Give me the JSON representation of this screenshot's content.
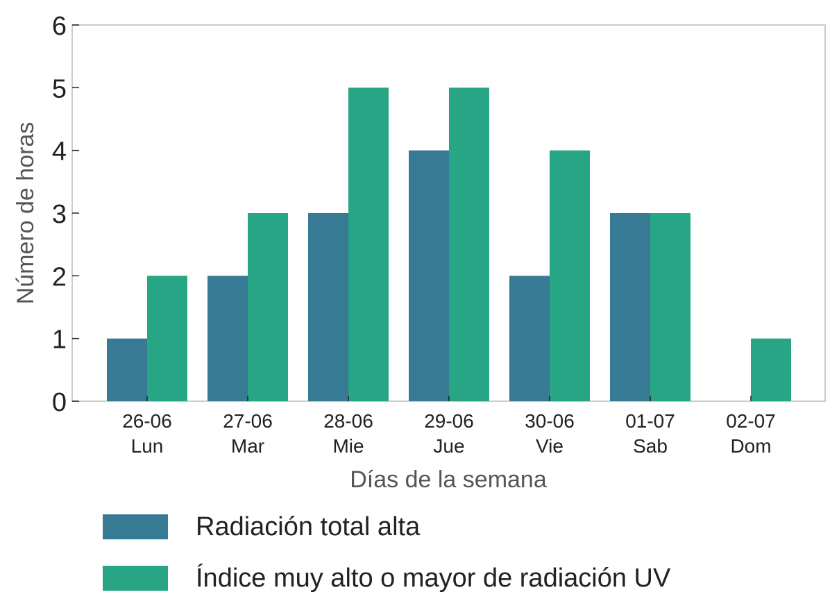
{
  "chart_data": {
    "type": "bar",
    "categories": [
      "26-06",
      "27-06",
      "28-06",
      "29-06",
      "30-06",
      "01-07",
      "02-07"
    ],
    "category_days": [
      "Lun",
      "Mar",
      "Mie",
      "Jue",
      "Vie",
      "Sab",
      "Dom"
    ],
    "series": [
      {
        "name": "Radiación total alta",
        "values": [
          1,
          2,
          3,
          4,
          2,
          3,
          0
        ],
        "color": "#367b93"
      },
      {
        "name": "Índice muy alto o mayor de radiación UV",
        "values": [
          2,
          3,
          5,
          5,
          4,
          3,
          1
        ],
        "color": "#27a584"
      }
    ],
    "xlabel": "Días de la semana",
    "ylabel": "Número de horas",
    "ylim": [
      0,
      6
    ],
    "yticks": [
      0,
      1,
      2,
      3,
      4,
      5,
      6
    ],
    "grid": false,
    "legend_position": "bottom"
  }
}
